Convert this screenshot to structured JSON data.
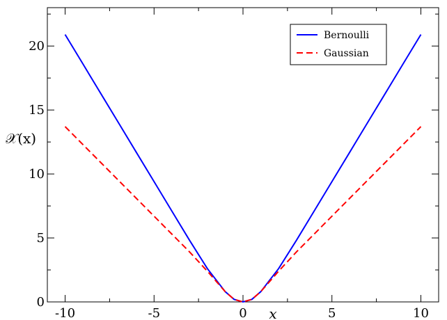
{
  "chart_data": {
    "type": "line",
    "xlabel": "x",
    "ylabel": "𝒳(x)",
    "xlim": [
      -11,
      11
    ],
    "ylim": [
      0,
      23
    ],
    "xticks": [
      -10,
      -5,
      0,
      5,
      10
    ],
    "xtick_labels": [
      "-10",
      "-5",
      "0",
      "5",
      "10"
    ],
    "yticks": [
      0,
      5,
      10,
      15,
      20
    ],
    "ytick_labels": [
      "0",
      "5",
      "10",
      "15",
      "20"
    ],
    "grid": false,
    "legend_position": "top-right",
    "series": [
      {
        "name": "Bernoulli",
        "color": "#0000ff",
        "style": "solid",
        "x": [
          -10,
          -9,
          -8,
          -7,
          -6,
          -5,
          -4,
          -3,
          -2,
          -1,
          -0.5,
          0,
          0.5,
          1,
          2,
          3,
          4,
          5,
          6,
          7,
          8,
          9,
          10
        ],
        "y": [
          20.9,
          18.6,
          16.3,
          14.0,
          11.7,
          9.4,
          7.1,
          4.8,
          2.6,
          0.8,
          0.2,
          0,
          0.2,
          0.8,
          2.6,
          4.8,
          7.1,
          9.4,
          11.7,
          14.0,
          16.3,
          18.6,
          20.9
        ]
      },
      {
        "name": "Gaussian",
        "color": "#ff0000",
        "style": "dashed",
        "x": [
          -10,
          -9,
          -8,
          -7,
          -6,
          -5,
          -4,
          -3,
          -2,
          -1,
          -0.5,
          0,
          0.5,
          1,
          2,
          3,
          4,
          5,
          6,
          7,
          8,
          9,
          10
        ],
        "y": [
          13.7,
          12.3,
          10.9,
          9.5,
          8.1,
          6.7,
          5.3,
          3.9,
          2.4,
          0.8,
          0.2,
          0,
          0.2,
          0.8,
          2.4,
          3.9,
          5.3,
          6.7,
          8.1,
          9.5,
          10.9,
          12.3,
          13.7
        ]
      }
    ]
  }
}
